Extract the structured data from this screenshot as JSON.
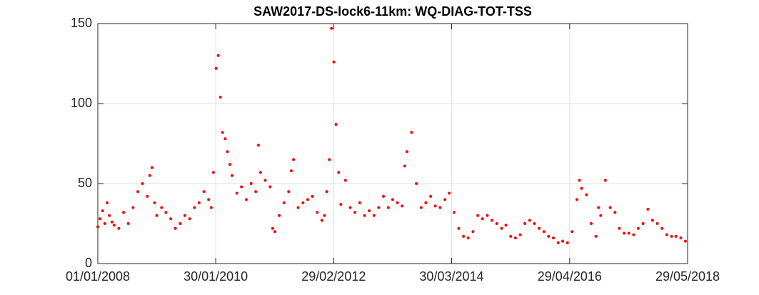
{
  "chart_data": {
    "type": "scatter",
    "title": "SAW2017-DS-lock6-11km: WQ-DIAG-TOT-TSS",
    "color": "#ff0000",
    "grid": true,
    "xlim": [
      "01/01/2008",
      "29/05/2018"
    ],
    "xticks": [
      "01/01/2008",
      "30/01/2010",
      "29/02/2012",
      "30/03/2014",
      "29/04/2016",
      "29/05/2018"
    ],
    "ylim": [
      0,
      150
    ],
    "yticks": [
      0,
      50,
      100,
      150
    ],
    "x": [
      "01/01/2008",
      "15/01/2008",
      "01/02/2008",
      "15/02/2008",
      "01/03/2008",
      "15/03/2008",
      "01/04/2008",
      "15/04/2008",
      "15/05/2008",
      "15/06/2008",
      "15/07/2008",
      "15/08/2008",
      "15/09/2008",
      "15/10/2008",
      "15/11/2008",
      "01/12/2008",
      "15/12/2008",
      "01/01/2009",
      "15/01/2009",
      "15/02/2009",
      "15/03/2009",
      "15/04/2009",
      "15/05/2009",
      "15/06/2009",
      "15/07/2009",
      "15/08/2009",
      "15/09/2009",
      "15/10/2009",
      "15/11/2009",
      "15/12/2009",
      "01/01/2010",
      "15/01/2010",
      "01/02/2010",
      "15/02/2010",
      "01/03/2010",
      "15/03/2010",
      "01/04/2010",
      "15/04/2010",
      "01/05/2010",
      "15/05/2010",
      "15/06/2010",
      "15/07/2010",
      "15/08/2010",
      "15/09/2010",
      "15/10/2010",
      "01/11/2010",
      "15/11/2010",
      "15/12/2010",
      "15/01/2011",
      "01/02/2011",
      "15/02/2011",
      "15/03/2011",
      "15/04/2011",
      "15/05/2011",
      "01/06/2011",
      "15/06/2011",
      "15/07/2011",
      "15/08/2011",
      "15/09/2011",
      "15/10/2011",
      "15/11/2011",
      "15/12/2011",
      "01/01/2012",
      "15/01/2012",
      "01/02/2012",
      "15/02/2012",
      "01/03/2012",
      "15/03/2012",
      "01/04/2012",
      "15/04/2012",
      "15/05/2012",
      "15/06/2012",
      "15/07/2012",
      "15/08/2012",
      "15/09/2012",
      "15/10/2012",
      "15/11/2012",
      "15/12/2012",
      "15/01/2013",
      "15/02/2013",
      "15/03/2013",
      "15/04/2013",
      "15/05/2013",
      "01/06/2013",
      "15/06/2013",
      "15/07/2013",
      "15/08/2013",
      "15/09/2013",
      "15/10/2013",
      "15/11/2013",
      "15/12/2013",
      "15/01/2014",
      "15/02/2014",
      "15/03/2014",
      "15/04/2014",
      "15/05/2014",
      "15/06/2014",
      "15/07/2014",
      "15/08/2014",
      "15/09/2014",
      "15/10/2014",
      "15/11/2014",
      "15/12/2014",
      "15/01/2015",
      "15/02/2015",
      "15/03/2015",
      "15/04/2015",
      "15/05/2015",
      "15/06/2015",
      "15/07/2015",
      "15/08/2015",
      "15/09/2015",
      "15/10/2015",
      "15/11/2015",
      "15/12/2015",
      "15/01/2016",
      "15/02/2016",
      "15/03/2016",
      "15/04/2016",
      "15/05/2016",
      "15/06/2016",
      "01/07/2016",
      "15/07/2016",
      "15/08/2016",
      "15/09/2016",
      "15/10/2016",
      "01/11/2016",
      "15/11/2016",
      "15/12/2016",
      "15/01/2017",
      "15/02/2017",
      "15/03/2017",
      "15/04/2017",
      "15/05/2017",
      "15/06/2017",
      "15/07/2017",
      "15/08/2017",
      "15/09/2017",
      "15/10/2017",
      "15/11/2017",
      "15/12/2017",
      "15/01/2018",
      "15/02/2018",
      "15/03/2018",
      "15/04/2018",
      "15/05/2018"
    ],
    "values": [
      23,
      28,
      33,
      25,
      38,
      30,
      26,
      24,
      22,
      32,
      25,
      35,
      45,
      50,
      42,
      55,
      60,
      38,
      30,
      35,
      32,
      28,
      22,
      25,
      30,
      28,
      35,
      38,
      45,
      40,
      35,
      57,
      122,
      130,
      104,
      82,
      78,
      70,
      62,
      55,
      44,
      48,
      40,
      50,
      45,
      74,
      57,
      52,
      48,
      22,
      20,
      30,
      38,
      45,
      58,
      65,
      35,
      38,
      40,
      42,
      32,
      27,
      30,
      45,
      65,
      147,
      126,
      87,
      57,
      37,
      52,
      35,
      32,
      38,
      30,
      33,
      30,
      35,
      42,
      35,
      40,
      38,
      36,
      61,
      70,
      82,
      50,
      35,
      38,
      42,
      36,
      35,
      40,
      44,
      32,
      22,
      17,
      16,
      20,
      30,
      28,
      30,
      27,
      25,
      22,
      24,
      17,
      16,
      18,
      25,
      27,
      25,
      22,
      20,
      17,
      16,
      13,
      14,
      13,
      20,
      40,
      52,
      47,
      43,
      25,
      17,
      35,
      30,
      52,
      35,
      32,
      22,
      19,
      19,
      18,
      22,
      25,
      34,
      27,
      25,
      22,
      18,
      17,
      17,
      16,
      14
    ]
  }
}
